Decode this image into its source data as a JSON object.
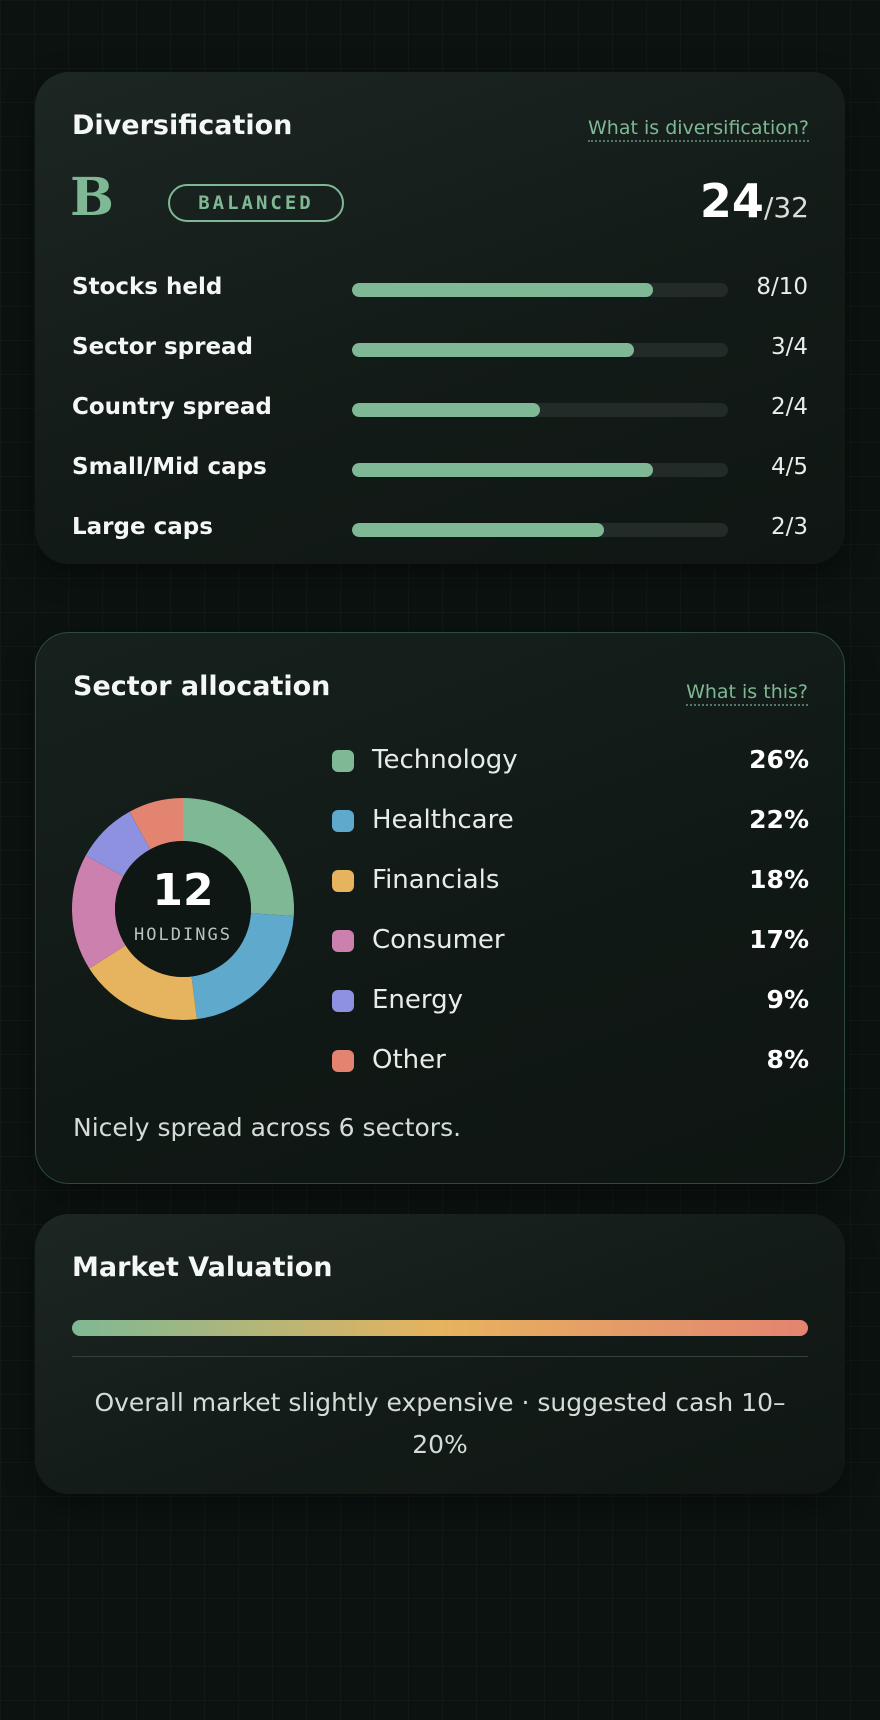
{
  "diversification": {
    "title": "Diversification",
    "help_link": "What is diversification?",
    "grade": "B",
    "badge": "BALANCED",
    "score": "24",
    "score_total": "/32",
    "metrics": [
      {
        "label": "Stocks held",
        "value": "8/10",
        "fraction": 0.8
      },
      {
        "label": "Sector spread",
        "value": "3/4",
        "fraction": 0.75
      },
      {
        "label": "Country spread",
        "value": "2/4",
        "fraction": 0.5
      },
      {
        "label": "Small/Mid caps",
        "value": "4/5",
        "fraction": 0.8
      },
      {
        "label": "Large caps",
        "value": "2/3",
        "fraction": 0.67
      }
    ]
  },
  "sector_allocation": {
    "title": "Sector allocation",
    "help_link": "What is this?",
    "holdings_count": "12",
    "holdings_label": "HOLDINGS",
    "sectors": [
      {
        "label": "Technology",
        "pct": "26%",
        "value": 26,
        "color": "#7fb894"
      },
      {
        "label": "Healthcare",
        "pct": "22%",
        "value": 22,
        "color": "#5ea9cc"
      },
      {
        "label": "Financials",
        "pct": "18%",
        "value": 18,
        "color": "#e6b35e"
      },
      {
        "label": "Consumer",
        "pct": "17%",
        "value": 17,
        "color": "#cc80ad"
      },
      {
        "label": "Energy",
        "pct": "9%",
        "value": 9,
        "color": "#8e90e0"
      },
      {
        "label": "Other",
        "pct": "8%",
        "value": 8,
        "color": "#e38470"
      }
    ],
    "note": "Nicely spread across 6 sectors."
  },
  "market_valuation": {
    "title": "Market Valuation",
    "gradient_colors": [
      "#7fb894",
      "#e6b35e",
      "#e38470"
    ],
    "note": "Overall market slightly expensive · suggested cash 10–20%"
  }
}
